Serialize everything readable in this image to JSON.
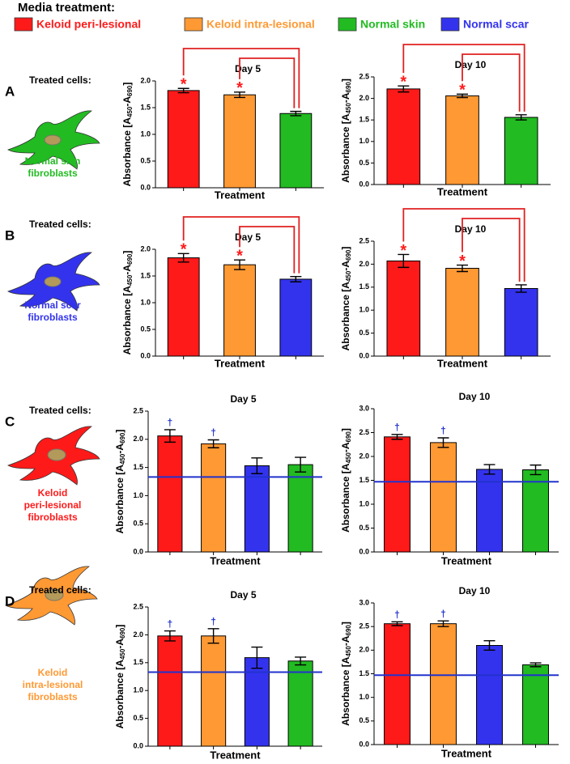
{
  "figure": {
    "legend_title": "Media treatment:",
    "legend": [
      {
        "name": "Keloid peri-lesional",
        "color": "#ff1a1a"
      },
      {
        "name": "Keloid intra-lesional",
        "color": "#ff9933"
      },
      {
        "name": "Normal skin",
        "color": "#22bb22"
      },
      {
        "name": "Normal scar",
        "color": "#3333ee"
      }
    ],
    "rows": [
      {
        "label": "A",
        "treated_cells": "Treated cells:",
        "cell_name": [
          "Normal skin",
          "fibroblasts"
        ],
        "color": "#22bb22"
      },
      {
        "label": "B",
        "treated_cells": "Treated cells:",
        "cell_name": [
          "Normal scar",
          "fibroblasts"
        ],
        "color": "#3333ee"
      },
      {
        "label": "C",
        "treated_cells": "Treated cells:",
        "cell_name": [
          "Keloid",
          "peri-lesional",
          "fibroblasts"
        ],
        "color": "#ff1a1a"
      },
      {
        "label": "D",
        "treated_cells": "Treated cells:",
        "cell_name": [
          "Keloid",
          "intra-lesional",
          "fibroblasts"
        ],
        "color": "#ff9933"
      }
    ]
  },
  "chart_data": [
    {
      "type": "bar",
      "title": "Day 5",
      "ylabel": [
        "Absorbance [A",
        "450",
        "-A",
        "690",
        "]"
      ],
      "xlabel": "Treatment",
      "categories": [
        null,
        null,
        null
      ],
      "values": [
        1.82,
        1.74,
        1.39
      ],
      "errors": [
        0.04,
        0.05,
        0.04
      ],
      "colors": [
        "#ff1a1a",
        "#ff9933",
        "#22bb22"
      ],
      "markers": [
        "*",
        "*",
        null
      ],
      "marker_color": "#ff1a1a",
      "comparisons": [
        [
          0,
          2
        ],
        [
          1,
          2
        ]
      ],
      "ylim": [
        0,
        2.0
      ],
      "yticks": [
        {
          "value": 0,
          "label": "0.0"
        },
        {
          "value": 0.5,
          "label": "0.5"
        },
        {
          "value": 1,
          "label": "1.0"
        },
        {
          "value": 1.5,
          "label": "1.5"
        },
        {
          "value": 2,
          "label": "2.0"
        }
      ]
    },
    {
      "type": "bar",
      "title": "Day 10",
      "ylabel": [
        "Absorbance [A",
        "450",
        "-A",
        "690",
        "]"
      ],
      "xlabel": "Treatment",
      "categories": [
        null,
        null,
        null
      ],
      "values": [
        2.22,
        2.06,
        1.56
      ],
      "errors": [
        0.07,
        0.04,
        0.06
      ],
      "colors": [
        "#ff1a1a",
        "#ff9933",
        "#22bb22"
      ],
      "markers": [
        "*",
        "*",
        null
      ],
      "marker_color": "#ff1a1a",
      "comparisons": [
        [
          0,
          2
        ],
        [
          1,
          2
        ]
      ],
      "ylim": [
        0,
        2.5
      ],
      "yticks": [
        {
          "value": 0,
          "label": "0.0"
        },
        {
          "value": 0.5,
          "label": "0.5"
        },
        {
          "value": 1,
          "label": "1.0"
        },
        {
          "value": 1.5,
          "label": "1.5"
        },
        {
          "value": 2,
          "label": "2.0"
        },
        {
          "value": 2.5,
          "label": "2.5"
        }
      ]
    },
    {
      "type": "bar",
      "title": "Day 5",
      "ylabel": [
        "Absorbance [A",
        "450",
        "-A",
        "690",
        "]"
      ],
      "xlabel": "Treatment",
      "categories": [
        null,
        null,
        null
      ],
      "values": [
        1.84,
        1.71,
        1.44
      ],
      "errors": [
        0.08,
        0.09,
        0.05
      ],
      "colors": [
        "#ff1a1a",
        "#ff9933",
        "#3333ee"
      ],
      "markers": [
        "*",
        "*",
        null
      ],
      "marker_color": "#ff1a1a",
      "comparisons": [
        [
          0,
          2
        ],
        [
          1,
          2
        ]
      ],
      "ylim": [
        0,
        2.0
      ],
      "yticks": [
        {
          "value": 0,
          "label": "0.0"
        },
        {
          "value": 0.5,
          "label": "0.5"
        },
        {
          "value": 1,
          "label": "1.0"
        },
        {
          "value": 1.5,
          "label": "1.5"
        },
        {
          "value": 2,
          "label": "2.0"
        }
      ]
    },
    {
      "type": "bar",
      "title": "Day 10",
      "ylabel": [
        "Absorbance [A",
        "450",
        "-A",
        "690",
        "]"
      ],
      "xlabel": "Treatment",
      "categories": [
        null,
        null,
        null
      ],
      "values": [
        2.07,
        1.91,
        1.47
      ],
      "errors": [
        0.14,
        0.07,
        0.08
      ],
      "colors": [
        "#ff1a1a",
        "#ff9933",
        "#3333ee"
      ],
      "markers": [
        "*",
        "*",
        null
      ],
      "marker_color": "#ff1a1a",
      "comparisons": [
        [
          0,
          2
        ],
        [
          1,
          2
        ]
      ],
      "ylim": [
        0,
        2.5
      ],
      "yticks": [
        {
          "value": 0,
          "label": "0.0"
        },
        {
          "value": 0.5,
          "label": "0.5"
        },
        {
          "value": 1,
          "label": "1.0"
        },
        {
          "value": 1.5,
          "label": "1.5"
        },
        {
          "value": 2,
          "label": "2.0"
        },
        {
          "value": 2.5,
          "label": "2.5"
        }
      ]
    },
    {
      "type": "bar",
      "title": "Day 5",
      "ylabel": [
        "Absorbance [A",
        "450",
        "-A",
        "690",
        "]"
      ],
      "xlabel": "Treatment",
      "categories": [
        null,
        null,
        null,
        null
      ],
      "values": [
        2.06,
        1.92,
        1.53,
        1.55
      ],
      "errors": [
        0.11,
        0.07,
        0.14,
        0.13
      ],
      "colors": [
        "#ff1a1a",
        "#ff9933",
        "#3333ee",
        "#22bb22"
      ],
      "markers": [
        "†",
        "†",
        null,
        null
      ],
      "marker_color": "#2233cc",
      "reference_line": 1.33,
      "reference_color": "#2233cc",
      "ylim": [
        0,
        2.5
      ],
      "yticks": [
        {
          "value": 0,
          "label": "0.0"
        },
        {
          "value": 0.5,
          "label": "0.5"
        },
        {
          "value": 1,
          "label": "1.0"
        },
        {
          "value": 1.5,
          "label": "1.5"
        },
        {
          "value": 2,
          "label": "2.0"
        },
        {
          "value": 2.5,
          "label": "2.5"
        }
      ]
    },
    {
      "type": "bar",
      "title": "Day 10",
      "ylabel": [
        "Absorbance [A",
        "450",
        "-A",
        "690",
        "]"
      ],
      "xlabel": "Treatment",
      "categories": [
        null,
        null,
        null,
        null
      ],
      "values": [
        2.41,
        2.29,
        1.73,
        1.72
      ],
      "errors": [
        0.05,
        0.1,
        0.1,
        0.1
      ],
      "colors": [
        "#ff1a1a",
        "#ff9933",
        "#3333ee",
        "#22bb22"
      ],
      "markers": [
        "†",
        "†",
        null,
        null
      ],
      "marker_color": "#2233cc",
      "reference_line": 1.47,
      "reference_color": "#2233cc",
      "ylim": [
        0,
        3.0
      ],
      "yticks": [
        {
          "value": 0,
          "label": "0.0"
        },
        {
          "value": 0.5,
          "label": "0.5"
        },
        {
          "value": 1,
          "label": "1.0"
        },
        {
          "value": 1.5,
          "label": "1.5"
        },
        {
          "value": 2,
          "label": "2.0"
        },
        {
          "value": 2.5,
          "label": "2.5"
        },
        {
          "value": 3,
          "label": "3.0"
        }
      ]
    },
    {
      "type": "bar",
      "title": "Day 5",
      "ylabel": [
        "Absorbance [A",
        "450",
        "-A",
        "690",
        "]"
      ],
      "xlabel": "Treatment",
      "categories": [
        null,
        null,
        null,
        null
      ],
      "values": [
        1.98,
        1.98,
        1.59,
        1.53
      ],
      "errors": [
        0.09,
        0.13,
        0.19,
        0.07
      ],
      "colors": [
        "#ff1a1a",
        "#ff9933",
        "#3333ee",
        "#22bb22"
      ],
      "markers": [
        "†",
        "†",
        null,
        null
      ],
      "marker_color": "#2233cc",
      "reference_line": 1.33,
      "reference_color": "#2233cc",
      "ylim": [
        0,
        2.5
      ],
      "yticks": [
        {
          "value": 0,
          "label": "0.0"
        },
        {
          "value": 0.5,
          "label": "0.5"
        },
        {
          "value": 1,
          "label": "1.0"
        },
        {
          "value": 1.5,
          "label": "1.5"
        },
        {
          "value": 2,
          "label": "2.0"
        },
        {
          "value": 2.5,
          "label": "2.5"
        }
      ]
    },
    {
      "type": "bar",
      "title": "Day 10",
      "ylabel": [
        "Absorbance [A",
        "450",
        "-A",
        "690",
        "]"
      ],
      "xlabel": "Treatment",
      "categories": [
        null,
        null,
        null,
        null
      ],
      "values": [
        2.56,
        2.56,
        2.1,
        1.69
      ],
      "errors": [
        0.04,
        0.06,
        0.1,
        0.04
      ],
      "colors": [
        "#ff1a1a",
        "#ff9933",
        "#3333ee",
        "#22bb22"
      ],
      "markers": [
        "†",
        "†",
        null,
        null
      ],
      "marker_color": "#2233cc",
      "reference_line": 1.47,
      "reference_color": "#2233cc",
      "ylim": [
        0,
        3.0
      ],
      "yticks": [
        {
          "value": 0,
          "label": "0.0"
        },
        {
          "value": 0.5,
          "label": "0.5"
        },
        {
          "value": 1,
          "label": "1.0"
        },
        {
          "value": 1.5,
          "label": "1.5"
        },
        {
          "value": 2,
          "label": "2.0"
        },
        {
          "value": 2.5,
          "label": "2.5"
        },
        {
          "value": 3,
          "label": "3.0"
        }
      ]
    }
  ]
}
